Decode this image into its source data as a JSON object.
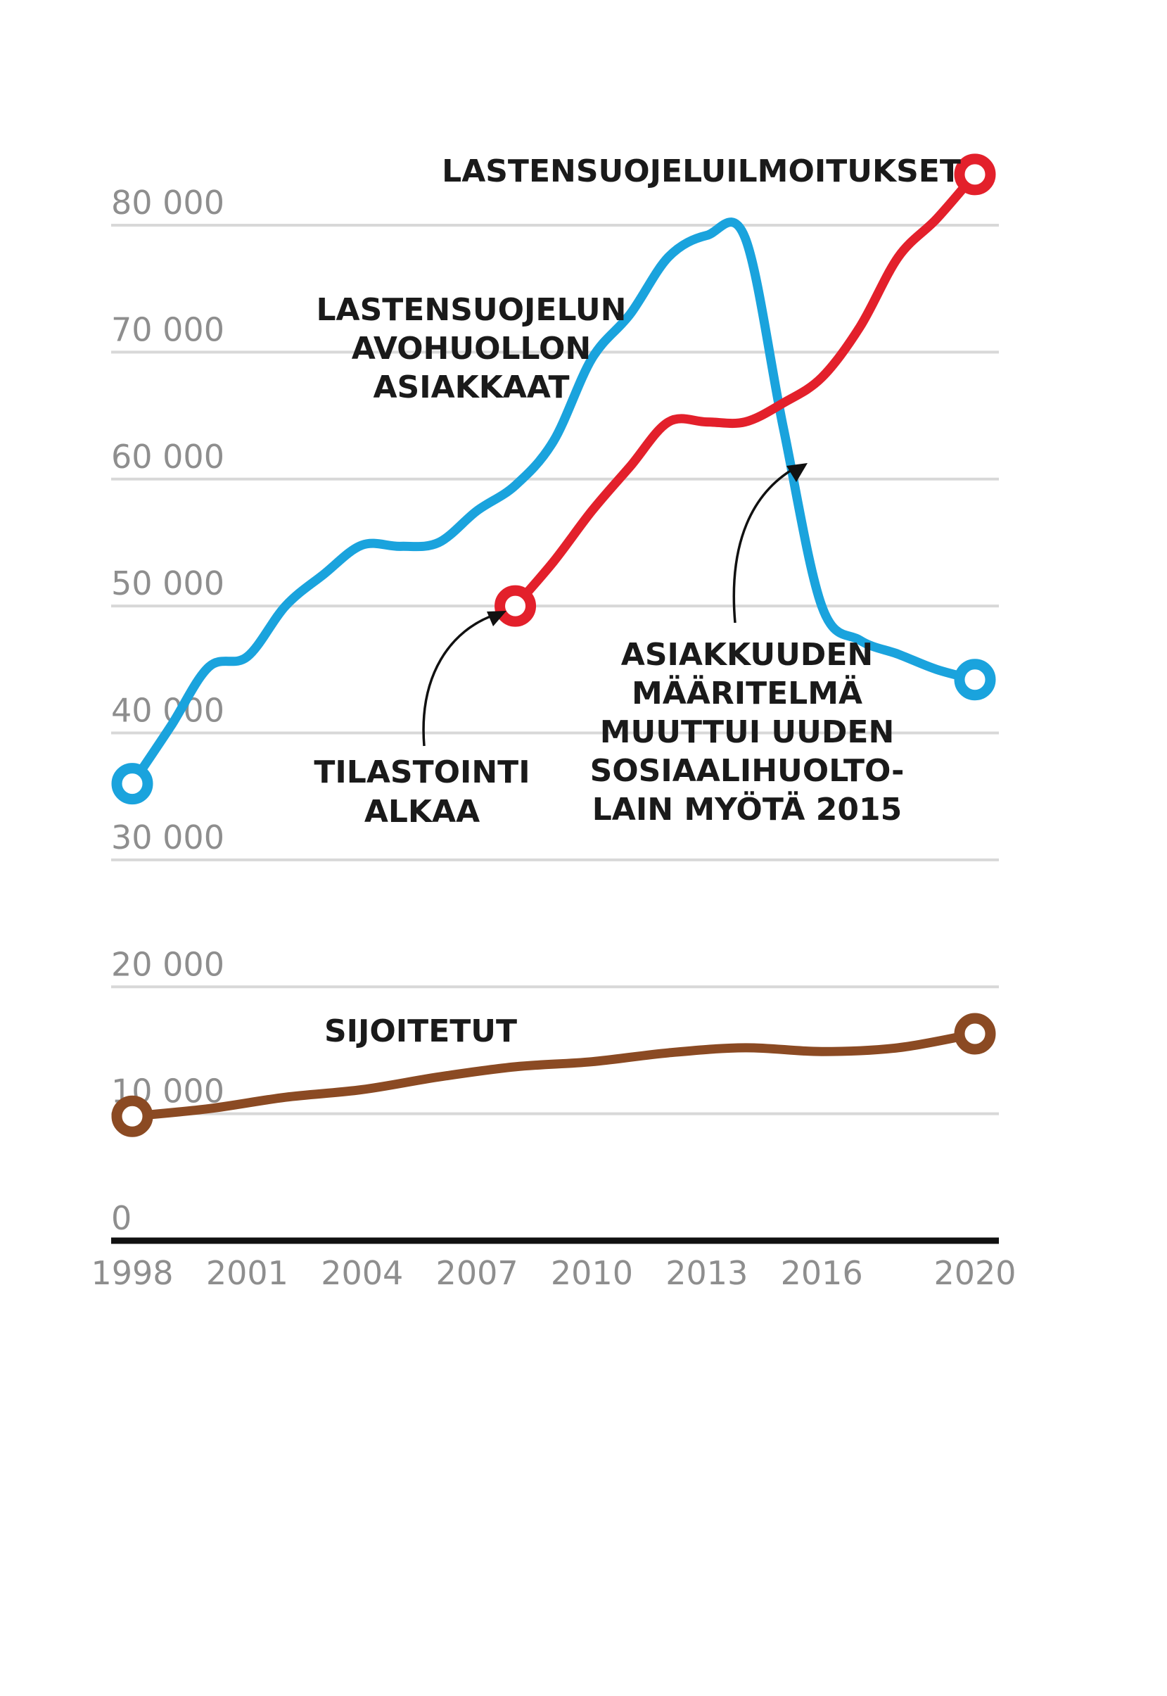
{
  "chart_data": {
    "type": "line",
    "ylim": [
      0,
      80000
    ],
    "yticks": [
      {
        "value": 0,
        "label": "0"
      },
      {
        "value": 10000,
        "label": "10 000"
      },
      {
        "value": 20000,
        "label": "20 000"
      },
      {
        "value": 30000,
        "label": "30 000"
      },
      {
        "value": 40000,
        "label": "40 000"
      },
      {
        "value": 50000,
        "label": "50 000"
      },
      {
        "value": 60000,
        "label": "60 000"
      },
      {
        "value": 70000,
        "label": "70 000"
      },
      {
        "value": 80000,
        "label": "80 000"
      }
    ],
    "xlim": [
      1998,
      2020
    ],
    "xticks": [
      {
        "value": 1998,
        "label": "1998"
      },
      {
        "value": 2001,
        "label": "2001"
      },
      {
        "value": 2004,
        "label": "2004"
      },
      {
        "value": 2007,
        "label": "2007"
      },
      {
        "value": 2010,
        "label": "2010"
      },
      {
        "value": 2013,
        "label": "2013"
      },
      {
        "value": 2016,
        "label": "2016"
      },
      {
        "value": 2020,
        "label": "2020"
      }
    ],
    "grid": true,
    "legend": "none",
    "series": [
      {
        "key": "avohuolto",
        "color": "#1aa3dd",
        "x": [
          1998,
          1999,
          2000,
          2001,
          2002,
          2003,
          2004,
          2005,
          2006,
          2007,
          2008,
          2009,
          2010,
          2011,
          2012,
          2013,
          2014,
          2015,
          2016,
          2017,
          2018,
          2019,
          2020
        ],
        "y": [
          36000,
          40500,
          45200,
          46000,
          50000,
          52500,
          54800,
          54700,
          55000,
          57500,
          59500,
          63000,
          69500,
          73000,
          77500,
          79200,
          79000,
          64000,
          50000,
          47300,
          46200,
          45000,
          44200
        ]
      },
      {
        "key": "ilmoitukset",
        "color": "#e3202b",
        "x": [
          2008,
          2009,
          2010,
          2011,
          2012,
          2013,
          2014,
          2015,
          2016,
          2017,
          2018,
          2019,
          2020
        ],
        "y": [
          50000,
          53500,
          57500,
          61000,
          64500,
          64500,
          64500,
          66000,
          68000,
          72000,
          77500,
          80500,
          84000
        ]
      },
      {
        "key": "sijoitetut",
        "color": "#8b4a23",
        "x": [
          1998,
          2000,
          2002,
          2004,
          2006,
          2008,
          2010,
          2012,
          2014,
          2016,
          2018,
          2020
        ],
        "y": [
          9800,
          10400,
          11300,
          11900,
          12900,
          13700,
          14100,
          14800,
          15200,
          14900,
          15200,
          16300
        ]
      }
    ],
    "annotations": {
      "ilmoitukset_label": "LASTENSUOJELUILMOITUKSET",
      "avohuolto_label": [
        "LASTENSUOJELUN",
        "AVOHUOLLON",
        "ASIAKKAAT"
      ],
      "sijoitetut_label": "SIJOITETUT",
      "tilastointi_label": [
        "TILASTOINTI",
        "ALKAA"
      ],
      "asiakkuus_label": [
        "ASIAKKUUDEN",
        "MÄÄRITELMÄ",
        "MUUTTUI UUDEN",
        "SOSIAALIHUOLTO-",
        "LAIN MYÖTÄ 2015"
      ]
    }
  }
}
